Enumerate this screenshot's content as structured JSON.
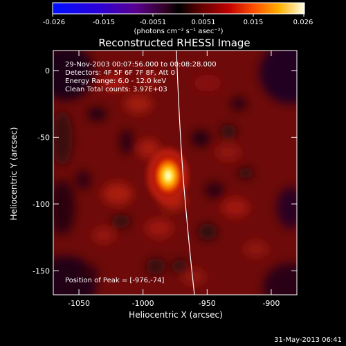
{
  "colorbar": {
    "ticks": [
      "-0.026",
      "-0.015",
      "-0.0051",
      "0.0051",
      "0.015",
      "0.026"
    ],
    "units": "(photons cm⁻² s⁻¹ asec⁻²)"
  },
  "title": "Reconstructed RHESSI Image",
  "annotations": {
    "time_range": "29-Nov-2003 00:07:56.000 to 00:08:28.000",
    "detectors": "Detectors: 4F 5F 6F 7F 8F, Att 0",
    "energy_range": "Energy Range: 6.0 - 12.0 keV",
    "clean_counts": "Clean    Total counts: 3.97E+03",
    "peak_position": "Position of Peak = [-976,-74]"
  },
  "axes": {
    "xlabel": "Heliocentric X (arcsec)",
    "ylabel": "Heliocentric Y (arcsec)",
    "x_ticks": [
      {
        "value": -1050,
        "label": "-1050"
      },
      {
        "value": -1000,
        "label": "-1000"
      },
      {
        "value": -950,
        "label": "-950"
      },
      {
        "value": -900,
        "label": "-900"
      }
    ],
    "y_ticks": [
      {
        "value": 0,
        "label": "0"
      },
      {
        "value": -50,
        "label": "-50"
      },
      {
        "value": -100,
        "label": "-100"
      },
      {
        "value": -150,
        "label": "-150"
      }
    ],
    "xlim": [
      -1070,
      -880
    ],
    "ylim": [
      -168,
      15
    ]
  },
  "peak": {
    "x": -976,
    "y": -74
  },
  "timestamp": "31-May-2013 06:41"
}
